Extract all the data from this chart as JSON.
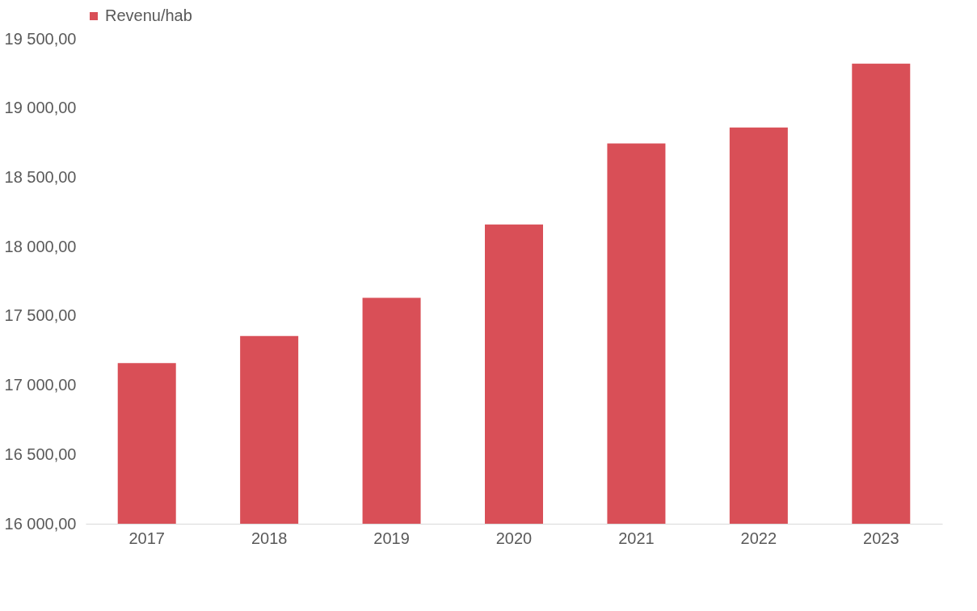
{
  "chart_data": {
    "type": "bar",
    "categories": [
      "2017",
      "2018",
      "2019",
      "2020",
      "2021",
      "2022",
      "2023"
    ],
    "series": [
      {
        "name": "Revenu/hab",
        "color": "#d94f57",
        "values": [
          17160,
          17355,
          17630,
          18160,
          18745,
          18860,
          19320
        ]
      }
    ],
    "ylim": [
      16000,
      19500
    ],
    "yticks": [
      {
        "value": 16000,
        "label": "16 000,00"
      },
      {
        "value": 16500,
        "label": "16 500,00"
      },
      {
        "value": 17000,
        "label": "17 000,00"
      },
      {
        "value": 17500,
        "label": "17 500,00"
      },
      {
        "value": 18000,
        "label": "18 000,00"
      },
      {
        "value": 18500,
        "label": "18 500,00"
      },
      {
        "value": 19000,
        "label": "19 000,00"
      },
      {
        "value": 19500,
        "label": "19 500,00"
      }
    ],
    "grid": false,
    "legend": "top"
  }
}
